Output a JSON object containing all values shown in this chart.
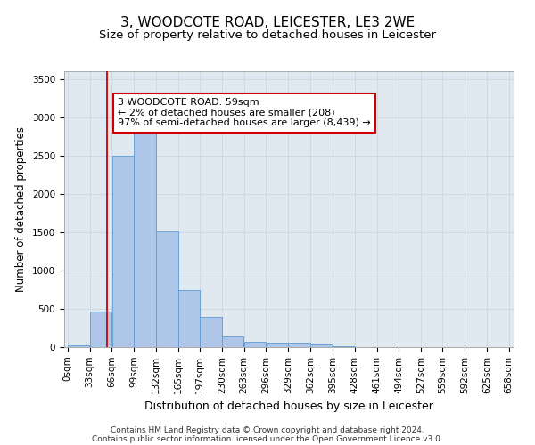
{
  "title": "3, WOODCOTE ROAD, LEICESTER, LE3 2WE",
  "subtitle": "Size of property relative to detached houses in Leicester",
  "xlabel": "Distribution of detached houses by size in Leicester",
  "ylabel": "Number of detached properties",
  "bin_edges": [
    0,
    33,
    66,
    99,
    132,
    165,
    197,
    230,
    263,
    296,
    329,
    362,
    395,
    428,
    461,
    494,
    527,
    559,
    592,
    625,
    658
  ],
  "bar_heights": [
    20,
    460,
    2500,
    2800,
    1510,
    740,
    390,
    140,
    75,
    55,
    55,
    30,
    15,
    5,
    5,
    3,
    2,
    1,
    1,
    0
  ],
  "bar_color": "#aec6e8",
  "bar_edge_color": "#5b9bd5",
  "property_line_x": 59,
  "property_line_color": "#cc0000",
  "annotation_line1": "3 WOODCOTE ROAD: 59sqm",
  "annotation_line2": "← 2% of detached houses are smaller (208)",
  "annotation_line3": "97% of semi-detached houses are larger (8,439) →",
  "annotation_box_color": "#cc0000",
  "ylim": [
    0,
    3600
  ],
  "yticks": [
    0,
    500,
    1000,
    1500,
    2000,
    2500,
    3000,
    3500
  ],
  "grid_color": "#d0d8e8",
  "background_color": "#e0e8f0",
  "footer_line1": "Contains HM Land Registry data © Crown copyright and database right 2024.",
  "footer_line2": "Contains public sector information licensed under the Open Government Licence v3.0.",
  "title_fontsize": 11,
  "subtitle_fontsize": 9.5,
  "axis_label_fontsize": 8.5,
  "tick_label_fontsize": 7.5,
  "annotation_fontsize": 8,
  "footer_fontsize": 6.5
}
